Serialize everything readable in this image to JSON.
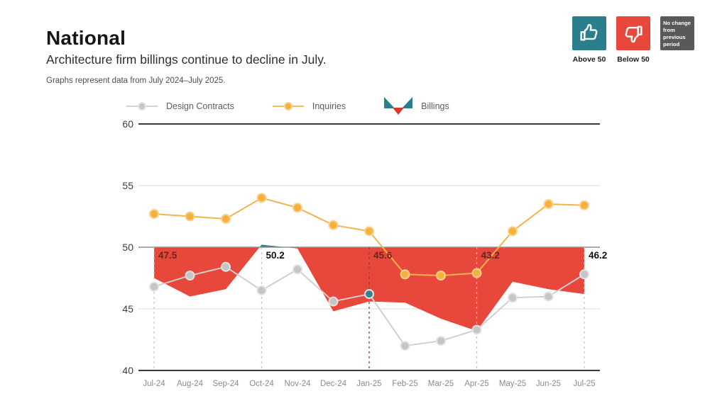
{
  "header": {
    "title": "National",
    "subtitle": "Architecture firm billings continue to decline in July.",
    "note": "Graphs represent data from July 2024–July 2025."
  },
  "key": {
    "above": {
      "label": "Above 50",
      "color": "#2b7e8c"
    },
    "below": {
      "label": "Below 50",
      "color": "#e8473b"
    },
    "no_change": {
      "label": "No change from previous period",
      "color": "#58595b"
    }
  },
  "legend": {
    "design_contracts": "Design Contracts",
    "inquiries": "Inquiries",
    "billings": "Billings"
  },
  "chart_data": {
    "type": "line+area",
    "title": "National Architecture Billings Index, July 2024 - July 2025",
    "categories": [
      "Jul-24",
      "Aug-24",
      "Sep-24",
      "Oct-24",
      "Nov-24",
      "Dec-24",
      "Jan-25",
      "Feb-25",
      "Mar-25",
      "Apr-25",
      "May-25",
      "Jun-25",
      "Jul-25"
    ],
    "yticks": [
      40,
      45,
      50,
      55,
      60
    ],
    "ylim": [
      40,
      60
    ],
    "baseline": 50,
    "grid": "horizontal",
    "legend_position": "top",
    "series": [
      {
        "name": "Design Contracts",
        "type": "line",
        "color": "#c5c5c5",
        "values": [
          46.8,
          47.7,
          48.4,
          46.5,
          48.2,
          45.6,
          46.2,
          42.0,
          42.4,
          43.3,
          45.9,
          46.0,
          47.8
        ]
      },
      {
        "name": "Inquiries",
        "type": "line",
        "color": "#f5b13c",
        "values": [
          52.7,
          52.5,
          52.3,
          54.0,
          53.2,
          51.8,
          51.3,
          47.8,
          47.7,
          47.9,
          51.3,
          53.5,
          53.4
        ]
      },
      {
        "name": "Billings",
        "type": "area",
        "baseline": 50,
        "above_color": "#2b7e8c",
        "below_color": "#e8473b",
        "values": [
          47.5,
          46.0,
          46.6,
          50.2,
          49.9,
          44.8,
          45.6,
          45.5,
          44.2,
          43.2,
          47.2,
          46.6,
          46.2
        ]
      }
    ],
    "annotations": [
      {
        "month": "Jul-24",
        "value": "47.5",
        "on_red": true
      },
      {
        "month": "Oct-24",
        "value": "50.2",
        "on_red": false
      },
      {
        "month": "Jan-25",
        "value": "45.6",
        "on_red": true
      },
      {
        "month": "Apr-25",
        "value": "43.2",
        "on_red": true
      },
      {
        "month": "Jul-25",
        "value": "46.2",
        "on_red": false
      }
    ],
    "dashed_months": [
      0,
      3,
      6,
      9,
      12
    ],
    "highlight_dashed_month": 6
  }
}
